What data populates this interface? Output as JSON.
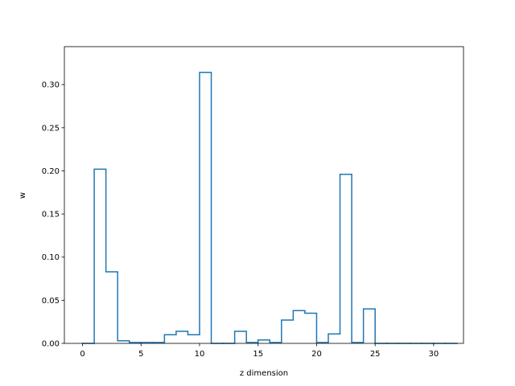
{
  "chart_data": {
    "type": "histogram-step",
    "xlabel": "z dimension",
    "ylabel": "w",
    "xlim": [
      -1.55,
      32.55
    ],
    "ylim": [
      0,
      0.344
    ],
    "x_ticks": [
      0,
      5,
      10,
      15,
      20,
      25,
      30
    ],
    "y_ticks": [
      0.0,
      0.05,
      0.1,
      0.15,
      0.2,
      0.25,
      0.3
    ],
    "y_tick_labels": [
      "0.00",
      "0.05",
      "0.10",
      "0.15",
      "0.20",
      "0.25",
      "0.30"
    ],
    "grid": false,
    "line_color": "#1f77b4",
    "bins": [
      0,
      1,
      2,
      3,
      4,
      5,
      6,
      7,
      8,
      9,
      10,
      11,
      12,
      13,
      14,
      15,
      16,
      17,
      18,
      19,
      20,
      21,
      22,
      23,
      24,
      25,
      26,
      27,
      28,
      29,
      30,
      31
    ],
    "values": [
      0,
      0.202,
      0.083,
      0.003,
      0.001,
      0.001,
      0.001,
      0.01,
      0.014,
      0.01,
      0.314,
      0,
      0,
      0.014,
      0.001,
      0.004,
      0.001,
      0.027,
      0.038,
      0.035,
      0.001,
      0.011,
      0.196,
      0.001,
      0.04,
      0,
      0,
      0,
      0,
      0,
      0,
      0
    ]
  }
}
